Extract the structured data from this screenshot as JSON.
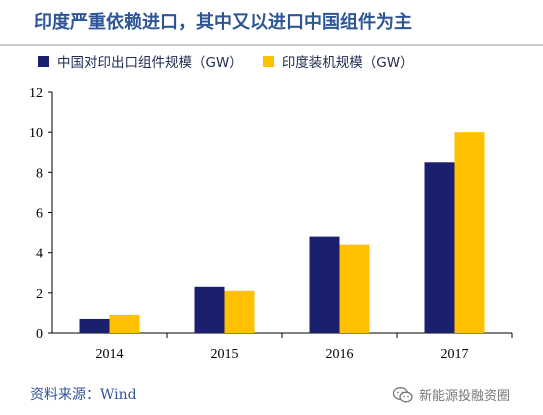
{
  "title": "印度严重依赖进口，其中又以进口中国组件为主",
  "source": "资料来源：Wind",
  "watermark": "新能源投融资圈",
  "colors": {
    "series1": "#1a1f6e",
    "series2": "#ffc000",
    "title": "#2e5597"
  },
  "chart_data": {
    "type": "bar",
    "categories": [
      "2014",
      "2015",
      "2016",
      "2017"
    ],
    "series": [
      {
        "name": "中国对印出口组件规模（GW）",
        "color": "#1a1f6e",
        "values": [
          0.7,
          2.3,
          4.8,
          8.5
        ]
      },
      {
        "name": "印度装机规模（GW）",
        "color": "#ffc000",
        "values": [
          0.9,
          2.1,
          4.4,
          10.0
        ]
      }
    ],
    "ylim": [
      0,
      12
    ],
    "yticks": [
      0,
      2,
      4,
      6,
      8,
      10,
      12
    ],
    "legend": "top-left",
    "grid": false
  }
}
